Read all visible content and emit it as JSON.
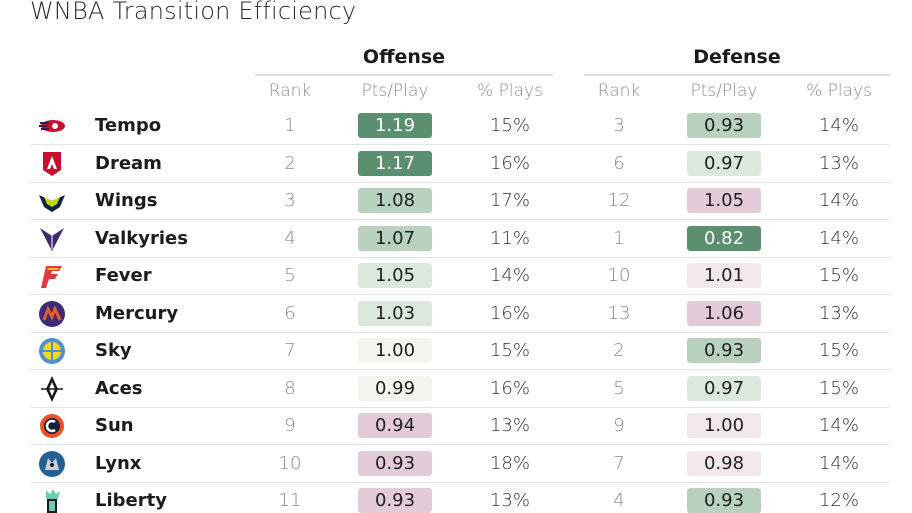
{
  "title": "WNBA Transition Efficiency",
  "groups": {
    "offense": "Offense",
    "defense": "Defense"
  },
  "columns": {
    "rank": "Rank",
    "pts": "Pts/Play",
    "plays": "% Plays"
  },
  "colors": {
    "strong_green": "#5a9070",
    "green": "#b8d2bf",
    "light_green": "#dbe8de",
    "neutral": "#f4f4f1",
    "light_pink": "#f3e9ec",
    "pink": "#e3ccd7",
    "dark_text_on_strong": "#ffffff"
  },
  "chart_data": {
    "type": "table",
    "title": "WNBA Transition Efficiency",
    "rows": [
      {
        "team": "Tempo",
        "logo": "tempo-logo",
        "off_rank": "1",
        "off_pts": "1.19",
        "off_plays": "15%",
        "def_rank": "3",
        "def_pts": "0.93",
        "def_plays": "14%"
      },
      {
        "team": "Dream",
        "logo": "dream-logo",
        "off_rank": "2",
        "off_pts": "1.17",
        "off_plays": "16%",
        "def_rank": "6",
        "def_pts": "0.97",
        "def_plays": "13%"
      },
      {
        "team": "Wings",
        "logo": "wings-logo",
        "off_rank": "3",
        "off_pts": "1.08",
        "off_plays": "17%",
        "def_rank": "12",
        "def_pts": "1.05",
        "def_plays": "14%"
      },
      {
        "team": "Valkyries",
        "logo": "valkyries-logo",
        "off_rank": "4",
        "off_pts": "1.07",
        "off_plays": "11%",
        "def_rank": "1",
        "def_pts": "0.82",
        "def_plays": "14%"
      },
      {
        "team": "Fever",
        "logo": "fever-logo",
        "off_rank": "5",
        "off_pts": "1.05",
        "off_plays": "14%",
        "def_rank": "10",
        "def_pts": "1.01",
        "def_plays": "15%"
      },
      {
        "team": "Mercury",
        "logo": "mercury-logo",
        "off_rank": "6",
        "off_pts": "1.03",
        "off_plays": "16%",
        "def_rank": "13",
        "def_pts": "1.06",
        "def_plays": "13%"
      },
      {
        "team": "Sky",
        "logo": "sky-logo",
        "off_rank": "7",
        "off_pts": "1.00",
        "off_plays": "15%",
        "def_rank": "2",
        "def_pts": "0.93",
        "def_plays": "15%"
      },
      {
        "team": "Aces",
        "logo": "aces-logo",
        "off_rank": "8",
        "off_pts": "0.99",
        "off_plays": "16%",
        "def_rank": "5",
        "def_pts": "0.97",
        "def_plays": "15%"
      },
      {
        "team": "Sun",
        "logo": "sun-logo",
        "off_rank": "9",
        "off_pts": "0.94",
        "off_plays": "13%",
        "def_rank": "9",
        "def_pts": "1.00",
        "def_plays": "14%"
      },
      {
        "team": "Lynx",
        "logo": "lynx-logo",
        "off_rank": "10",
        "off_pts": "0.93",
        "off_plays": "18%",
        "def_rank": "7",
        "def_pts": "0.98",
        "def_plays": "14%"
      },
      {
        "team": "Liberty",
        "logo": "liberty-logo",
        "off_rank": "11",
        "off_pts": "0.93",
        "off_plays": "13%",
        "def_rank": "4",
        "def_pts": "0.93",
        "def_plays": "12%"
      }
    ]
  }
}
